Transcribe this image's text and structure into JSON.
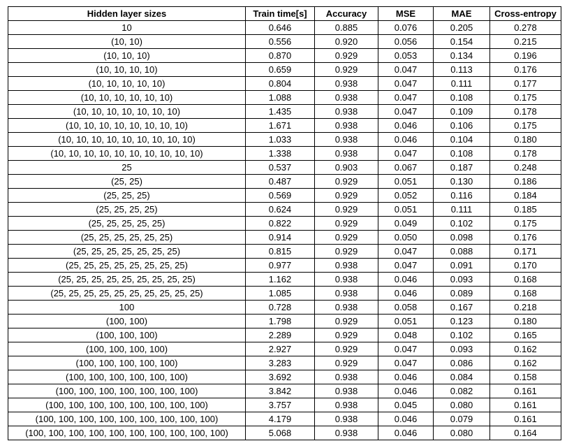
{
  "headers": [
    "Hidden layer sizes",
    "Train time[s]",
    "Accuracy",
    "MSE",
    "MAE",
    "Cross-entropy"
  ],
  "rows": [
    [
      "10",
      "0.646",
      "0.885",
      "0.076",
      "0.205",
      "0.278"
    ],
    [
      "(10, 10)",
      "0.556",
      "0.920",
      "0.056",
      "0.154",
      "0.215"
    ],
    [
      "(10, 10, 10)",
      "0.870",
      "0.929",
      "0.053",
      "0.134",
      "0.196"
    ],
    [
      "(10, 10, 10, 10)",
      "0.659",
      "0.929",
      "0.047",
      "0.113",
      "0.176"
    ],
    [
      "(10, 10, 10, 10, 10)",
      "0.804",
      "0.938",
      "0.047",
      "0.111",
      "0.177"
    ],
    [
      "(10, 10, 10, 10, 10, 10)",
      "1.088",
      "0.938",
      "0.047",
      "0.108",
      "0.175"
    ],
    [
      "(10, 10, 10, 10, 10, 10, 10)",
      "1.435",
      "0.938",
      "0.047",
      "0.109",
      "0.178"
    ],
    [
      "(10, 10, 10, 10, 10, 10, 10, 10)",
      "1.671",
      "0.938",
      "0.046",
      "0.106",
      "0.175"
    ],
    [
      "(10, 10, 10, 10, 10, 10, 10, 10, 10)",
      "1.033",
      "0.938",
      "0.046",
      "0.104",
      "0.180"
    ],
    [
      "(10, 10, 10, 10, 10, 10, 10, 10, 10, 10)",
      "1.338",
      "0.938",
      "0.047",
      "0.108",
      "0.178"
    ],
    [
      "25",
      "0.537",
      "0.903",
      "0.067",
      "0.187",
      "0.248"
    ],
    [
      "(25, 25)",
      "0.487",
      "0.929",
      "0.051",
      "0.130",
      "0.186"
    ],
    [
      "(25, 25, 25)",
      "0.569",
      "0.929",
      "0.052",
      "0.116",
      "0.184"
    ],
    [
      "(25, 25, 25, 25)",
      "0.624",
      "0.929",
      "0.051",
      "0.111",
      "0.185"
    ],
    [
      "(25, 25, 25, 25, 25)",
      "0.822",
      "0.929",
      "0.049",
      "0.102",
      "0.175"
    ],
    [
      "(25, 25, 25, 25, 25, 25)",
      "0.914",
      "0.929",
      "0.050",
      "0.098",
      "0.176"
    ],
    [
      "(25, 25, 25, 25, 25, 25, 25)",
      "0.815",
      "0.929",
      "0.047",
      "0.088",
      "0.171"
    ],
    [
      "(25, 25, 25, 25, 25, 25, 25, 25)",
      "0.977",
      "0.938",
      "0.047",
      "0.091",
      "0.170"
    ],
    [
      "(25, 25, 25, 25, 25, 25, 25, 25, 25)",
      "1.162",
      "0.938",
      "0.046",
      "0.093",
      "0.168"
    ],
    [
      "(25, 25, 25, 25, 25, 25, 25, 25, 25, 25)",
      "1.085",
      "0.938",
      "0.046",
      "0.089",
      "0.168"
    ],
    [
      "100",
      "0.728",
      "0.938",
      "0.058",
      "0.167",
      "0.218"
    ],
    [
      "(100, 100)",
      "1.798",
      "0.929",
      "0.051",
      "0.123",
      "0.180"
    ],
    [
      "(100, 100, 100)",
      "2.289",
      "0.929",
      "0.048",
      "0.102",
      "0.165"
    ],
    [
      "(100, 100, 100, 100)",
      "2.927",
      "0.929",
      "0.047",
      "0.093",
      "0.162"
    ],
    [
      "(100, 100, 100, 100, 100)",
      "3.283",
      "0.929",
      "0.047",
      "0.086",
      "0.162"
    ],
    [
      "(100, 100, 100, 100, 100, 100)",
      "3.692",
      "0.938",
      "0.046",
      "0.084",
      "0.158"
    ],
    [
      "(100, 100, 100, 100, 100, 100, 100)",
      "3.842",
      "0.938",
      "0.046",
      "0.082",
      "0.161"
    ],
    [
      "(100, 100, 100, 100, 100, 100, 100, 100)",
      "3.757",
      "0.938",
      "0.045",
      "0.080",
      "0.161"
    ],
    [
      "(100, 100, 100, 100, 100, 100, 100, 100, 100)",
      "4.179",
      "0.938",
      "0.046",
      "0.079",
      "0.161"
    ],
    [
      "(100, 100, 100, 100, 100, 100, 100, 100, 100, 100)",
      "5.068",
      "0.938",
      "0.046",
      "0.080",
      "0.164"
    ]
  ]
}
